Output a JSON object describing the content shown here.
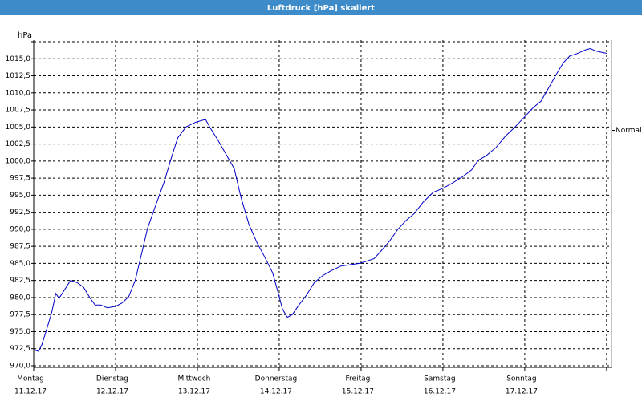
{
  "chart_data": {
    "type": "line",
    "title": "Luftdruck [hPa] skaliert",
    "y_unit": "hPa",
    "annotation": {
      "text": "Normal",
      "value": 1004.5
    },
    "xlim": [
      0,
      7.06
    ],
    "xticks": [
      {
        "value": 0,
        "label": "Montag",
        "date": "11.12.17"
      },
      {
        "value": 1,
        "label": "Dienstag",
        "date": "12.12.17"
      },
      {
        "value": 2,
        "label": "Mittwoch",
        "date": "13.12.17"
      },
      {
        "value": 3,
        "label": "Donnerstag",
        "date": "14.12.17"
      },
      {
        "value": 4,
        "label": "Freitag",
        "date": "15.12.17"
      },
      {
        "value": 5,
        "label": "Samstag",
        "date": "16.12.17"
      },
      {
        "value": 6,
        "label": "Sonntag",
        "date": "17.12.17"
      },
      {
        "value": 7,
        "label": null,
        "date": null
      }
    ],
    "ylim": [
      970,
      1017.5
    ],
    "yticks": [
      {
        "value": 970,
        "label": "970,0"
      },
      {
        "value": 972.5,
        "label": "972,5"
      },
      {
        "value": 975,
        "label": "975,0"
      },
      {
        "value": 977.5,
        "label": "977,5"
      },
      {
        "value": 980,
        "label": "980,0"
      },
      {
        "value": 982.5,
        "label": "982,5"
      },
      {
        "value": 985,
        "label": "985,0"
      },
      {
        "value": 987.5,
        "label": "987,5"
      },
      {
        "value": 990,
        "label": "990,0"
      },
      {
        "value": 992.5,
        "label": "992,5"
      },
      {
        "value": 995,
        "label": "995,0"
      },
      {
        "value": 997.5,
        "label": "997,5"
      },
      {
        "value": 1000,
        "label": "1000,0"
      },
      {
        "value": 1002.5,
        "label": "1002,5"
      },
      {
        "value": 1005,
        "label": "1005,0"
      },
      {
        "value": 1007.5,
        "label": "1007,5"
      },
      {
        "value": 1010,
        "label": "1010,0"
      },
      {
        "value": 1012.5,
        "label": "1012,5"
      },
      {
        "value": 1015,
        "label": "1015,0"
      },
      {
        "value": 1017.5,
        "label": null
      }
    ],
    "grid": true,
    "color": "#0000c8",
    "x": [
      0,
      0.06,
      0.1,
      0.16,
      0.22,
      0.27,
      0.31,
      0.37,
      0.45,
      0.53,
      0.61,
      0.69,
      0.75,
      0.82,
      0.9,
      1.0,
      1.08,
      1.16,
      1.24,
      1.31,
      1.39,
      1.49,
      1.59,
      1.69,
      1.76,
      1.86,
      1.98,
      2.1,
      2.16,
      2.25,
      2.35,
      2.45,
      2.53,
      2.63,
      2.73,
      2.82,
      2.92,
      2.98,
      3.04,
      3.1,
      3.16,
      3.24,
      3.33,
      3.43,
      3.53,
      3.63,
      3.75,
      3.86,
      3.98,
      4.06,
      4.16,
      4.25,
      4.35,
      4.45,
      4.55,
      4.65,
      4.76,
      4.88,
      5.0,
      5.12,
      5.24,
      5.35,
      5.43,
      5.53,
      5.65,
      5.76,
      5.88,
      6.0,
      6.1,
      6.2,
      6.29,
      6.39,
      6.47,
      6.55,
      6.65,
      6.74,
      6.8,
      6.88,
      7.0
    ],
    "values": [
      972.35,
      972.1,
      973.1,
      975.4,
      977.8,
      980.6,
      979.9,
      981.0,
      982.5,
      982.2,
      981.5,
      979.9,
      978.9,
      978.9,
      978.5,
      978.7,
      979.2,
      980.1,
      982.5,
      986.0,
      990.1,
      993.5,
      996.8,
      1000.8,
      1003.4,
      1005.0,
      1005.7,
      1006.1,
      1004.8,
      1003.1,
      1001.0,
      998.9,
      994.8,
      990.7,
      988.0,
      986.0,
      983.6,
      981.0,
      978.3,
      977.1,
      977.5,
      978.9,
      980.3,
      982.2,
      983.2,
      983.9,
      984.6,
      984.8,
      985.0,
      985.3,
      985.7,
      986.9,
      988.3,
      990.0,
      991.3,
      992.3,
      994.0,
      995.4,
      996.0,
      996.8,
      997.7,
      998.7,
      1000.1,
      1000.8,
      1002.0,
      1003.6,
      1005.0,
      1006.5,
      1007.8,
      1008.8,
      1010.7,
      1012.8,
      1014.4,
      1015.4,
      1015.8,
      1016.3,
      1016.5,
      1016.1,
      1015.8
    ]
  }
}
